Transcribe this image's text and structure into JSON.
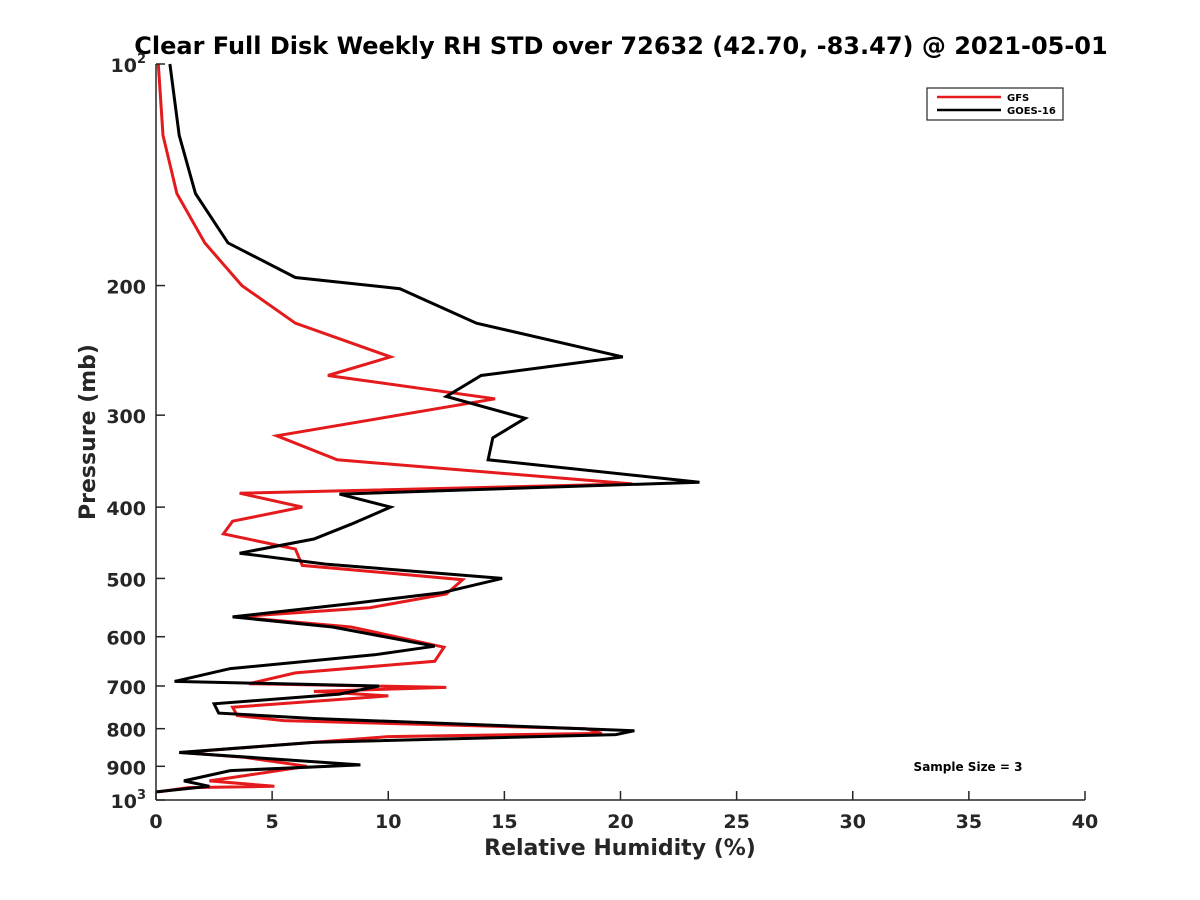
{
  "chart_data": {
    "type": "line",
    "title": "Clear Full Disk Weekly RH STD over 72632 (42.70, -83.47) @ 2021-05-01",
    "xlabel": "Relative Humidity (%)",
    "ylabel": "Pressure (mb)",
    "xlim": [
      0,
      40
    ],
    "ylim": [
      100,
      1000
    ],
    "y_scale": "log",
    "y_reversed": true,
    "x_ticks": [
      0,
      5,
      10,
      15,
      20,
      25,
      30,
      35,
      40
    ],
    "y_ticks": [
      {
        "value": 100,
        "label": "10",
        "sup": "2"
      },
      {
        "value": 200,
        "label": "200"
      },
      {
        "value": 300,
        "label": "300"
      },
      {
        "value": 400,
        "label": "400"
      },
      {
        "value": 500,
        "label": "500"
      },
      {
        "value": 600,
        "label": "600"
      },
      {
        "value": 700,
        "label": "700"
      },
      {
        "value": 800,
        "label": "800"
      },
      {
        "value": 900,
        "label": "900"
      },
      {
        "value": 1000,
        "label": "10",
        "sup": "3"
      }
    ],
    "grid": false,
    "legend_position": "top-right",
    "annotation": "Sample Size = 3",
    "series": [
      {
        "name": "GFS",
        "color": "#e41a1c",
        "points": [
          [
            0.1,
            100
          ],
          [
            0.3,
            125
          ],
          [
            0.9,
            150
          ],
          [
            2.1,
            175
          ],
          [
            3.7,
            200
          ],
          [
            6.0,
            225
          ],
          [
            10.1,
            250
          ],
          [
            7.4,
            265
          ],
          [
            14.6,
            285
          ],
          [
            5.2,
            320
          ],
          [
            7.8,
            345
          ],
          [
            20.5,
            372
          ],
          [
            3.6,
            383
          ],
          [
            6.3,
            400
          ],
          [
            3.3,
            418
          ],
          [
            2.9,
            435
          ],
          [
            6.0,
            456
          ],
          [
            6.3,
            480
          ],
          [
            13.2,
            502
          ],
          [
            12.5,
            525
          ],
          [
            9.2,
            548
          ],
          [
            3.4,
            564
          ],
          [
            8.4,
            582
          ],
          [
            12.4,
            620
          ],
          [
            12.0,
            648
          ],
          [
            6.0,
            672
          ],
          [
            4.0,
            695
          ],
          [
            12.5,
            703
          ],
          [
            6.8,
            712
          ],
          [
            10.0,
            722
          ],
          [
            3.3,
            748
          ],
          [
            3.5,
            768
          ],
          [
            5.5,
            780
          ],
          [
            18.5,
            800
          ],
          [
            19.2,
            812
          ],
          [
            10.0,
            820
          ],
          [
            1.1,
            862
          ],
          [
            3.8,
            875
          ],
          [
            6.5,
            900
          ],
          [
            4.5,
            920
          ],
          [
            2.3,
            942
          ],
          [
            5.1,
            958
          ],
          [
            1.4,
            962
          ],
          [
            0.1,
            975
          ]
        ]
      },
      {
        "name": "GOES-16",
        "color": "#000000",
        "points": [
          [
            0.6,
            100
          ],
          [
            1.0,
            125
          ],
          [
            1.7,
            150
          ],
          [
            3.1,
            175
          ],
          [
            6.0,
            195
          ],
          [
            10.5,
            202
          ],
          [
            13.8,
            225
          ],
          [
            20.1,
            250
          ],
          [
            14.0,
            265
          ],
          [
            12.5,
            283
          ],
          [
            15.9,
            303
          ],
          [
            14.5,
            322
          ],
          [
            14.3,
            345
          ],
          [
            23.4,
            370
          ],
          [
            7.9,
            384
          ],
          [
            10.1,
            400
          ],
          [
            8.4,
            422
          ],
          [
            6.8,
            442
          ],
          [
            3.6,
            462
          ],
          [
            7.3,
            478
          ],
          [
            14.9,
            500
          ],
          [
            12.3,
            523
          ],
          [
            8.4,
            541
          ],
          [
            3.3,
            564
          ],
          [
            7.6,
            582
          ],
          [
            12.0,
            618
          ],
          [
            9.4,
            635
          ],
          [
            3.2,
            663
          ],
          [
            0.8,
            690
          ],
          [
            9.6,
            700
          ],
          [
            7.9,
            718
          ],
          [
            2.5,
            740
          ],
          [
            2.7,
            762
          ],
          [
            6.8,
            775
          ],
          [
            20.6,
            805
          ],
          [
            19.8,
            815
          ],
          [
            6.8,
            835
          ],
          [
            1.0,
            862
          ],
          [
            8.8,
            896
          ],
          [
            3.2,
            912
          ],
          [
            1.2,
            942
          ],
          [
            2.3,
            958
          ],
          [
            0.0,
            975
          ]
        ]
      }
    ]
  }
}
